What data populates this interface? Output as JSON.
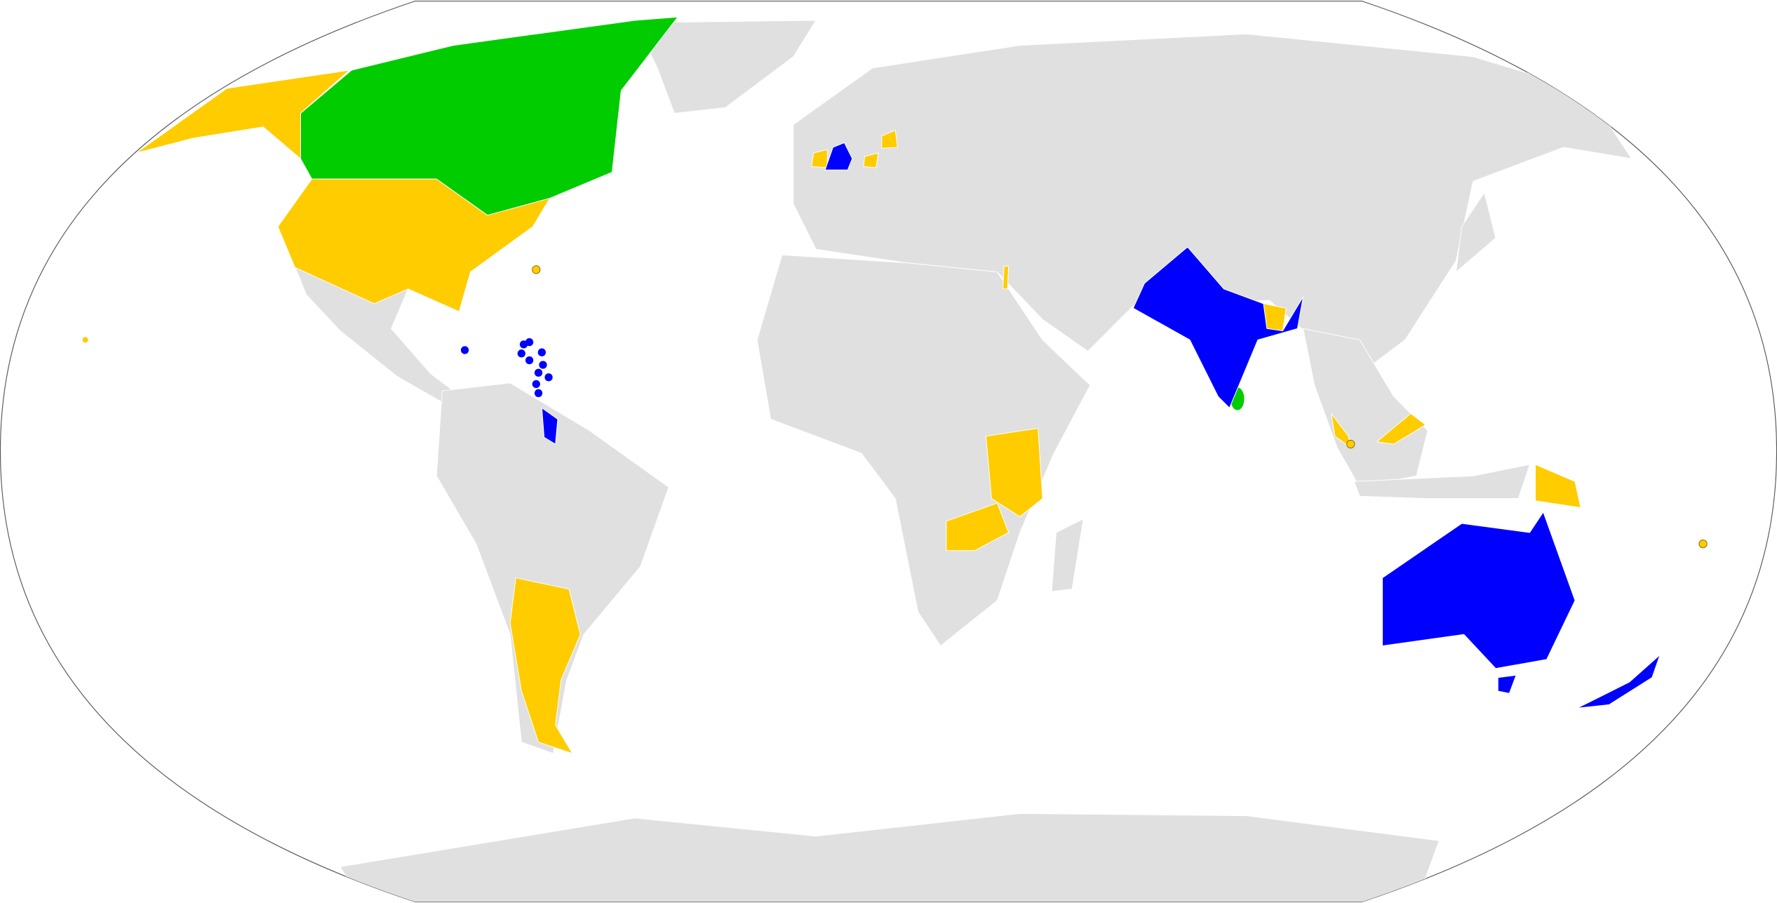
{
  "map": {
    "projection": "robinson",
    "colors": {
      "ocean": "#ffffff",
      "outline": "#555555",
      "default_land": "#e0e0e0",
      "green": "#00cc00",
      "yellow": "#ffcc00",
      "blue": "#0000ff"
    }
  }
}
